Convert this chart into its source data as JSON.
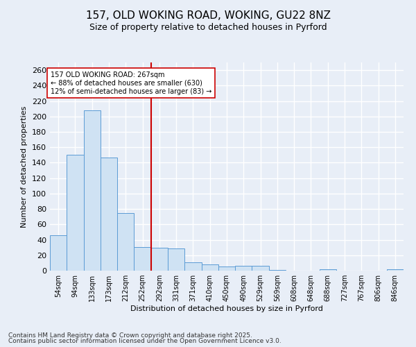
{
  "title_line1": "157, OLD WOKING ROAD, WOKING, GU22 8NZ",
  "title_line2": "Size of property relative to detached houses in Pyrford",
  "xlabel": "Distribution of detached houses by size in Pyrford",
  "ylabel": "Number of detached properties",
  "bar_labels": [
    "54sqm",
    "94sqm",
    "133sqm",
    "173sqm",
    "212sqm",
    "252sqm",
    "292sqm",
    "331sqm",
    "371sqm",
    "410sqm",
    "450sqm",
    "490sqm",
    "529sqm",
    "569sqm",
    "608sqm",
    "648sqm",
    "688sqm",
    "727sqm",
    "767sqm",
    "806sqm",
    "846sqm"
  ],
  "bar_values": [
    46,
    150,
    208,
    147,
    75,
    31,
    30,
    29,
    11,
    8,
    5,
    6,
    6,
    1,
    0,
    0,
    2,
    0,
    0,
    0,
    2
  ],
  "bar_color": "#cfe2f3",
  "bar_edge_color": "#5b9bd5",
  "property_line_x": 5.5,
  "property_line_color": "#cc0000",
  "annotation_text": "157 OLD WOKING ROAD: 267sqm\n← 88% of detached houses are smaller (630)\n12% of semi-detached houses are larger (83) →",
  "annotation_box_color": "#ffffff",
  "annotation_box_edge": "#cc0000",
  "ylim": [
    0,
    270
  ],
  "yticks": [
    0,
    20,
    40,
    60,
    80,
    100,
    120,
    140,
    160,
    180,
    200,
    220,
    240,
    260
  ],
  "background_color": "#e8eef7",
  "grid_color": "#ffffff",
  "footer_line1": "Contains HM Land Registry data © Crown copyright and database right 2025.",
  "footer_line2": "Contains public sector information licensed under the Open Government Licence v3.0."
}
